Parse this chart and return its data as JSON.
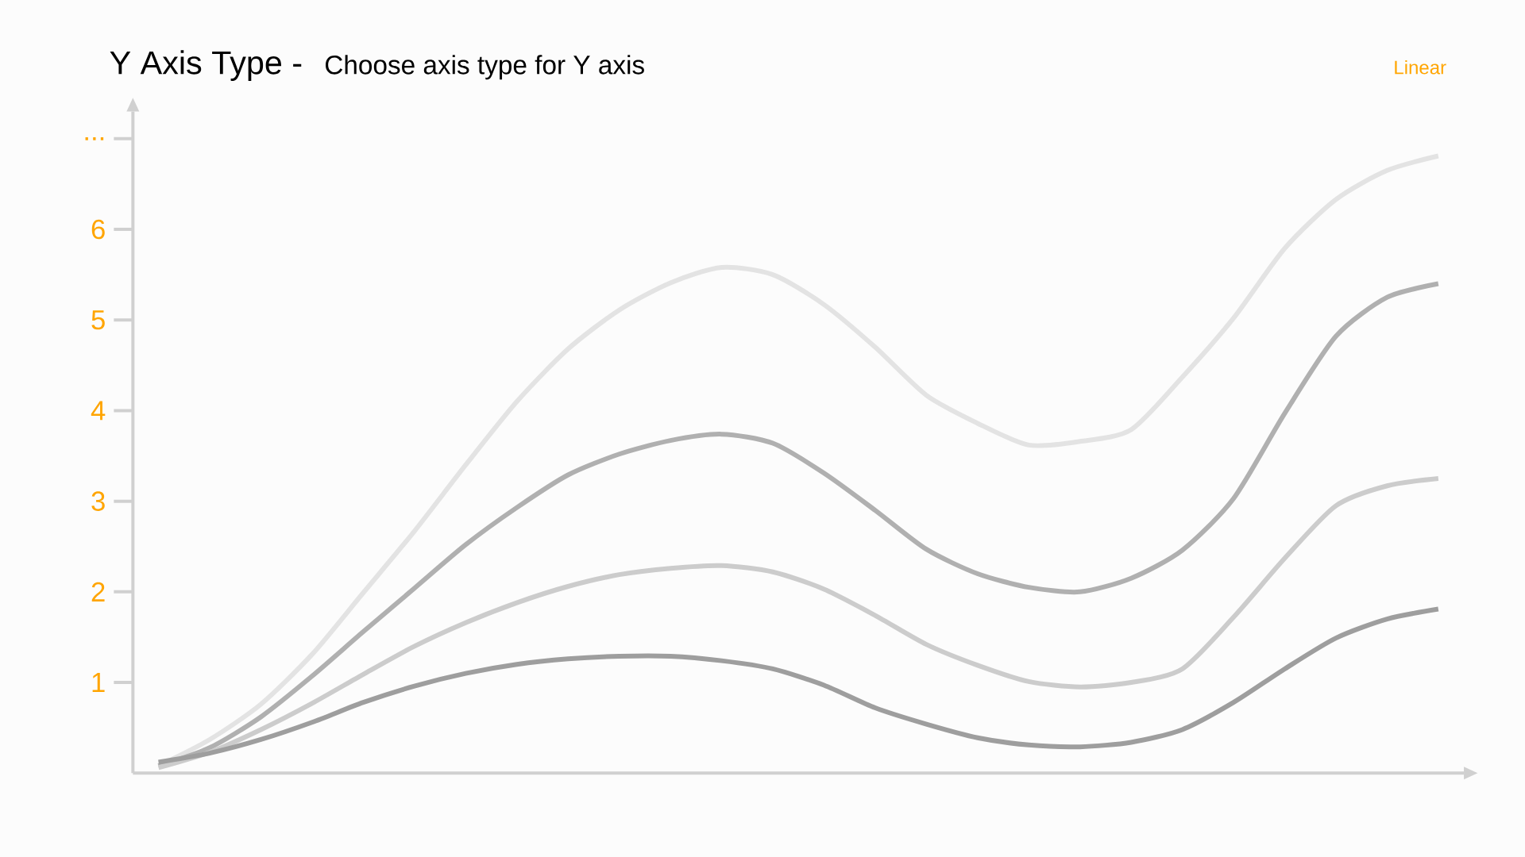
{
  "chart_data": {
    "type": "line",
    "title": "Y Axis Type -",
    "subtitle": "Choose axis type for Y axis",
    "annotations": [
      "Linear"
    ],
    "categories": [
      null,
      null,
      null,
      null,
      null,
      null,
      null,
      null,
      null,
      null,
      null,
      null,
      null,
      null,
      null,
      null,
      null,
      null,
      null,
      null,
      null,
      null,
      null,
      null,
      null,
      null
    ],
    "series": [
      {
        "color": "#e3e3e3",
        "values": [
          0.08,
          0.37,
          0.76,
          1.31,
          1.99,
          2.67,
          3.4,
          4.1,
          4.68,
          5.11,
          5.41,
          5.58,
          5.5,
          5.17,
          4.7,
          4.17,
          3.86,
          3.62,
          3.66,
          3.79,
          4.37,
          5.02,
          5.79,
          6.33,
          6.65,
          6.81
        ]
      },
      {
        "color": "#b0b0b0",
        "values": [
          0.08,
          0.28,
          0.62,
          1.07,
          1.56,
          2.04,
          2.52,
          2.93,
          3.29,
          3.52,
          3.67,
          3.74,
          3.64,
          3.31,
          2.9,
          2.47,
          2.2,
          2.05,
          2.0,
          2.15,
          2.46,
          3.03,
          3.97,
          4.82,
          5.25,
          5.4
        ]
      },
      {
        "color": "#cccccc",
        "values": [
          0.06,
          0.23,
          0.48,
          0.77,
          1.09,
          1.4,
          1.66,
          1.88,
          2.06,
          2.19,
          2.26,
          2.29,
          2.22,
          2.03,
          1.74,
          1.42,
          1.19,
          1.01,
          0.95,
          1.0,
          1.15,
          1.72,
          2.37,
          2.95,
          3.17,
          3.25
        ]
      },
      {
        "color": "#9e9e9e",
        "values": [
          0.12,
          0.22,
          0.37,
          0.56,
          0.78,
          0.96,
          1.1,
          1.2,
          1.26,
          1.29,
          1.29,
          1.24,
          1.15,
          0.97,
          0.72,
          0.54,
          0.39,
          0.31,
          0.29,
          0.34,
          0.48,
          0.78,
          1.15,
          1.49,
          1.7,
          1.81
        ]
      }
    ],
    "ylim": [
      0,
      7.3
    ],
    "yticks": [
      1,
      2,
      3,
      4,
      5,
      6,
      {
        "value": 7,
        "label": "..."
      }
    ],
    "tick_labels": "y"
  }
}
